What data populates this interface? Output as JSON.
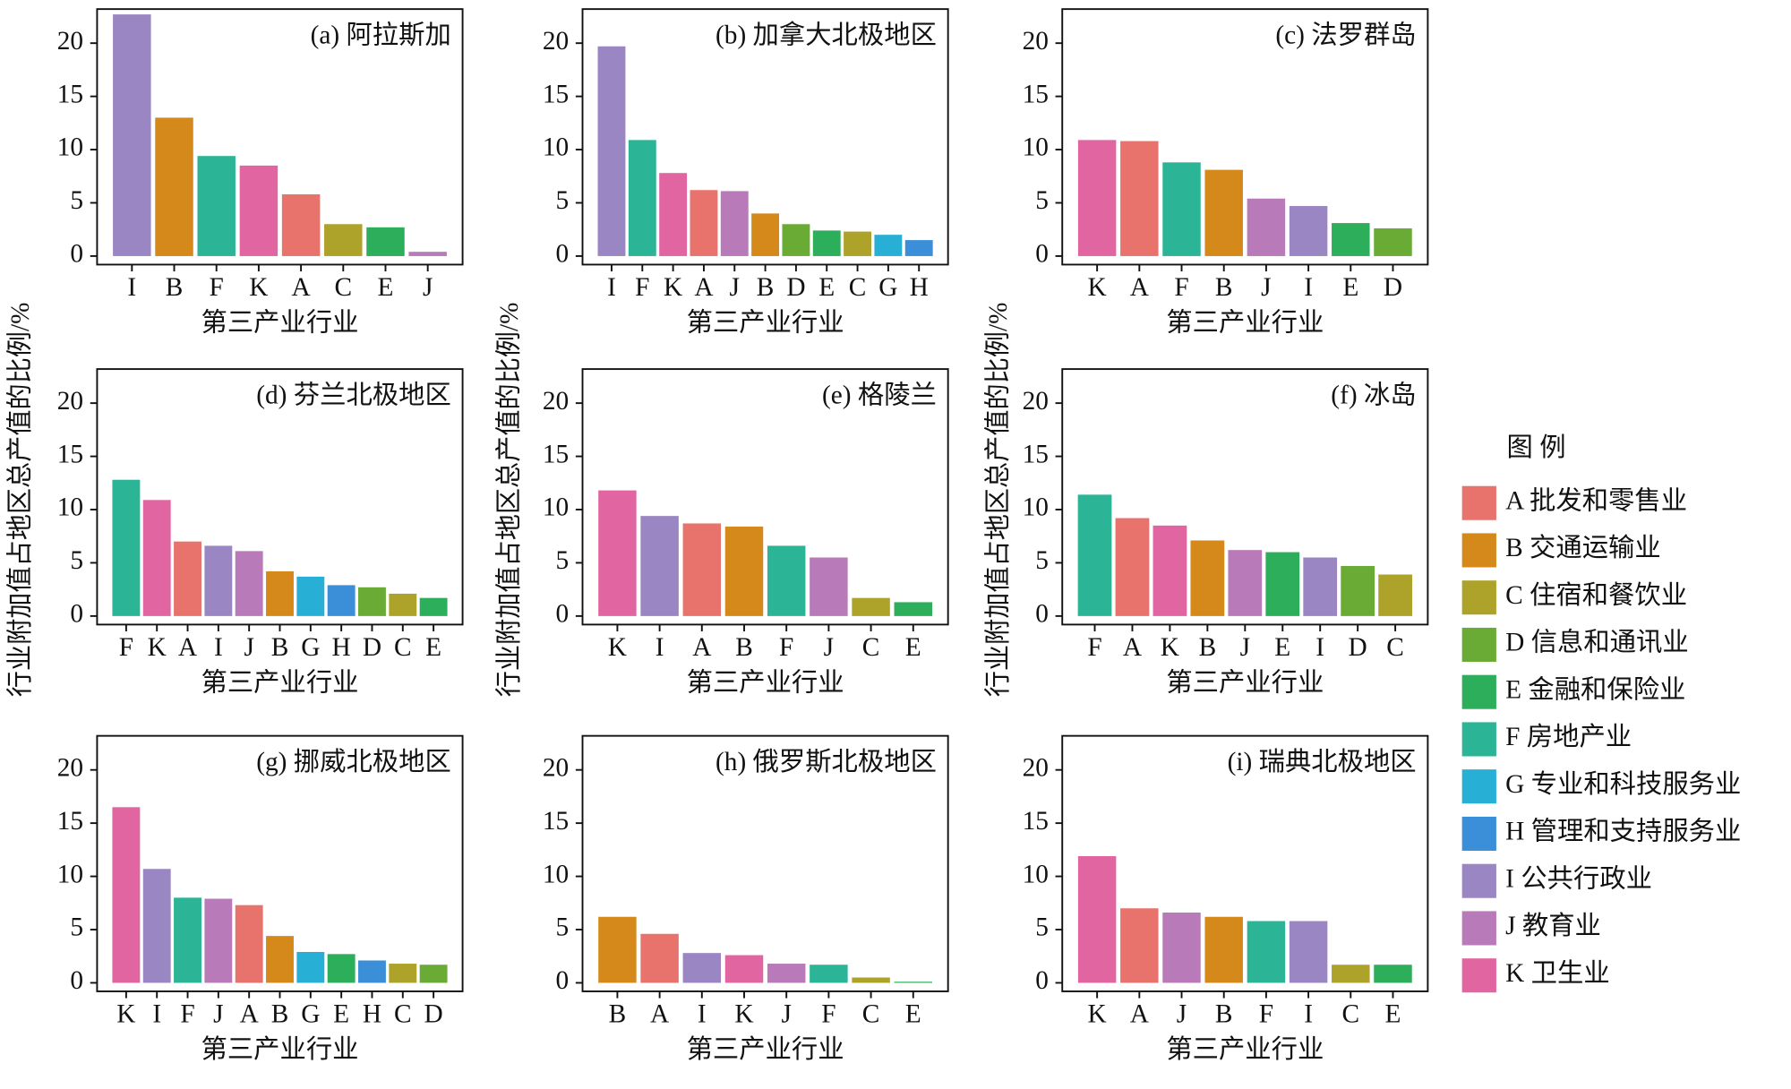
{
  "ylabel": "行业附加值占地区总产值的比例/%",
  "legend": {
    "title": "图 例",
    "items": [
      {
        "label": "A 批发和零售业",
        "color": "#e8736c"
      },
      {
        "label": "B 交通运输业",
        "color": "#d4891a"
      },
      {
        "label": "C 住宿和餐饮业",
        "color": "#ada22a"
      },
      {
        "label": "D 信息和通讯业",
        "color": "#6aab35"
      },
      {
        "label": "E 金融和保险业",
        "color": "#2dae5a"
      },
      {
        "label": "F 房地产业",
        "color": "#2bb596"
      },
      {
        "label": "G 专业和科技服务业",
        "color": "#27afd6"
      },
      {
        "label": "H 管理和支持服务业",
        "color": "#3b8fd8"
      },
      {
        "label": "I 公共行政业",
        "color": "#9a86c2"
      },
      {
        "label": "J 教育业",
        "color": "#b87ab8"
      },
      {
        "label": "K 卫生业",
        "color": "#e065a0"
      }
    ]
  },
  "chart_data": [
    {
      "type": "bar",
      "title": "(a) 阿拉斯加",
      "xlabel": "第三产业行业",
      "categories": [
        "I",
        "B",
        "F",
        "K",
        "A",
        "C",
        "E",
        "J"
      ],
      "values": [
        22.7,
        13.0,
        9.4,
        8.5,
        5.8,
        3.0,
        2.7,
        0.4
      ],
      "colors": [
        "#9a86c2",
        "#d4891a",
        "#2bb596",
        "#e065a0",
        "#e8736c",
        "#ada22a",
        "#2dae5a",
        "#b87ab8"
      ],
      "ylim": [
        -0.8,
        23.2
      ],
      "yticks": [
        0,
        5,
        10,
        15,
        20
      ]
    },
    {
      "type": "bar",
      "title": "(b) 加拿大北极地区",
      "xlabel": "第三产业行业",
      "categories": [
        "I",
        "F",
        "K",
        "A",
        "J",
        "B",
        "D",
        "E",
        "C",
        "G",
        "H"
      ],
      "values": [
        19.7,
        10.9,
        7.8,
        6.2,
        6.1,
        4.0,
        3.0,
        2.4,
        2.3,
        2.0,
        1.5
      ],
      "colors": [
        "#9a86c2",
        "#2bb596",
        "#e065a0",
        "#e8736c",
        "#b87ab8",
        "#d4891a",
        "#6aab35",
        "#2dae5a",
        "#ada22a",
        "#27afd6",
        "#3b8fd8"
      ],
      "ylim": [
        -0.8,
        23.2
      ],
      "yticks": [
        0,
        5,
        10,
        15,
        20
      ]
    },
    {
      "type": "bar",
      "title": "(c) 法罗群岛",
      "xlabel": "第三产业行业",
      "categories": [
        "K",
        "A",
        "F",
        "B",
        "J",
        "I",
        "E",
        "D"
      ],
      "values": [
        10.9,
        10.8,
        8.8,
        8.1,
        5.4,
        4.7,
        3.1,
        2.6
      ],
      "colors": [
        "#e065a0",
        "#e8736c",
        "#2bb596",
        "#d4891a",
        "#b87ab8",
        "#9a86c2",
        "#2dae5a",
        "#6aab35"
      ],
      "ylim": [
        -0.8,
        23.2
      ],
      "yticks": [
        0,
        5,
        10,
        15,
        20
      ]
    },
    {
      "type": "bar",
      "title": "(d) 芬兰北极地区",
      "xlabel": "第三产业行业",
      "categories": [
        "F",
        "K",
        "A",
        "I",
        "J",
        "B",
        "G",
        "H",
        "D",
        "C",
        "E"
      ],
      "values": [
        12.8,
        10.9,
        7.0,
        6.6,
        6.1,
        4.2,
        3.7,
        2.9,
        2.7,
        2.1,
        1.7
      ],
      "colors": [
        "#2bb596",
        "#e065a0",
        "#e8736c",
        "#9a86c2",
        "#b87ab8",
        "#d4891a",
        "#27afd6",
        "#3b8fd8",
        "#6aab35",
        "#ada22a",
        "#2dae5a"
      ],
      "ylim": [
        -0.8,
        23.2
      ],
      "yticks": [
        0,
        5,
        10,
        15,
        20
      ]
    },
    {
      "type": "bar",
      "title": "(e) 格陵兰",
      "xlabel": "第三产业行业",
      "categories": [
        "K",
        "I",
        "A",
        "B",
        "F",
        "J",
        "C",
        "E"
      ],
      "values": [
        11.8,
        9.4,
        8.7,
        8.4,
        6.6,
        5.5,
        1.7,
        1.3
      ],
      "colors": [
        "#e065a0",
        "#9a86c2",
        "#e8736c",
        "#d4891a",
        "#2bb596",
        "#b87ab8",
        "#ada22a",
        "#2dae5a"
      ],
      "ylim": [
        -0.8,
        23.2
      ],
      "yticks": [
        0,
        5,
        10,
        15,
        20
      ]
    },
    {
      "type": "bar",
      "title": "(f) 冰岛",
      "xlabel": "第三产业行业",
      "categories": [
        "F",
        "A",
        "K",
        "B",
        "J",
        "E",
        "I",
        "D",
        "C"
      ],
      "values": [
        11.4,
        9.2,
        8.5,
        7.1,
        6.2,
        6.0,
        5.5,
        4.7,
        3.9
      ],
      "colors": [
        "#2bb596",
        "#e8736c",
        "#e065a0",
        "#d4891a",
        "#b87ab8",
        "#2dae5a",
        "#9a86c2",
        "#6aab35",
        "#ada22a"
      ],
      "ylim": [
        -0.8,
        23.2
      ],
      "yticks": [
        0,
        5,
        10,
        15,
        20
      ]
    },
    {
      "type": "bar",
      "title": "(g) 挪威北极地区",
      "xlabel": "第三产业行业",
      "categories": [
        "K",
        "I",
        "F",
        "J",
        "A",
        "B",
        "G",
        "E",
        "H",
        "C",
        "D"
      ],
      "values": [
        16.5,
        10.7,
        8.0,
        7.9,
        7.3,
        4.4,
        2.9,
        2.7,
        2.1,
        1.8,
        1.7
      ],
      "colors": [
        "#e065a0",
        "#9a86c2",
        "#2bb596",
        "#b87ab8",
        "#e8736c",
        "#d4891a",
        "#27afd6",
        "#2dae5a",
        "#3b8fd8",
        "#ada22a",
        "#6aab35"
      ],
      "ylim": [
        -0.8,
        23.2
      ],
      "yticks": [
        0,
        5,
        10,
        15,
        20
      ]
    },
    {
      "type": "bar",
      "title": "(h) 俄罗斯北极地区",
      "xlabel": "第三产业行业",
      "categories": [
        "B",
        "A",
        "I",
        "K",
        "J",
        "F",
        "C",
        "E"
      ],
      "values": [
        6.2,
        4.6,
        2.8,
        2.6,
        1.8,
        1.7,
        0.5,
        0.1
      ],
      "colors": [
        "#d4891a",
        "#e8736c",
        "#9a86c2",
        "#e065a0",
        "#b87ab8",
        "#2bb596",
        "#ada22a",
        "#2dae5a"
      ],
      "ylim": [
        -0.8,
        23.2
      ],
      "yticks": [
        0,
        5,
        10,
        15,
        20
      ]
    },
    {
      "type": "bar",
      "title": "(i) 瑞典北极地区",
      "xlabel": "第三产业行业",
      "categories": [
        "K",
        "A",
        "J",
        "B",
        "F",
        "I",
        "C",
        "E"
      ],
      "values": [
        11.9,
        7.0,
        6.6,
        6.2,
        5.8,
        5.8,
        1.7,
        1.7
      ],
      "colors": [
        "#e065a0",
        "#e8736c",
        "#b87ab8",
        "#d4891a",
        "#2bb596",
        "#9a86c2",
        "#ada22a",
        "#2dae5a"
      ],
      "ylim": [
        -0.8,
        23.2
      ],
      "yticks": [
        0,
        5,
        10,
        15,
        20
      ]
    }
  ]
}
